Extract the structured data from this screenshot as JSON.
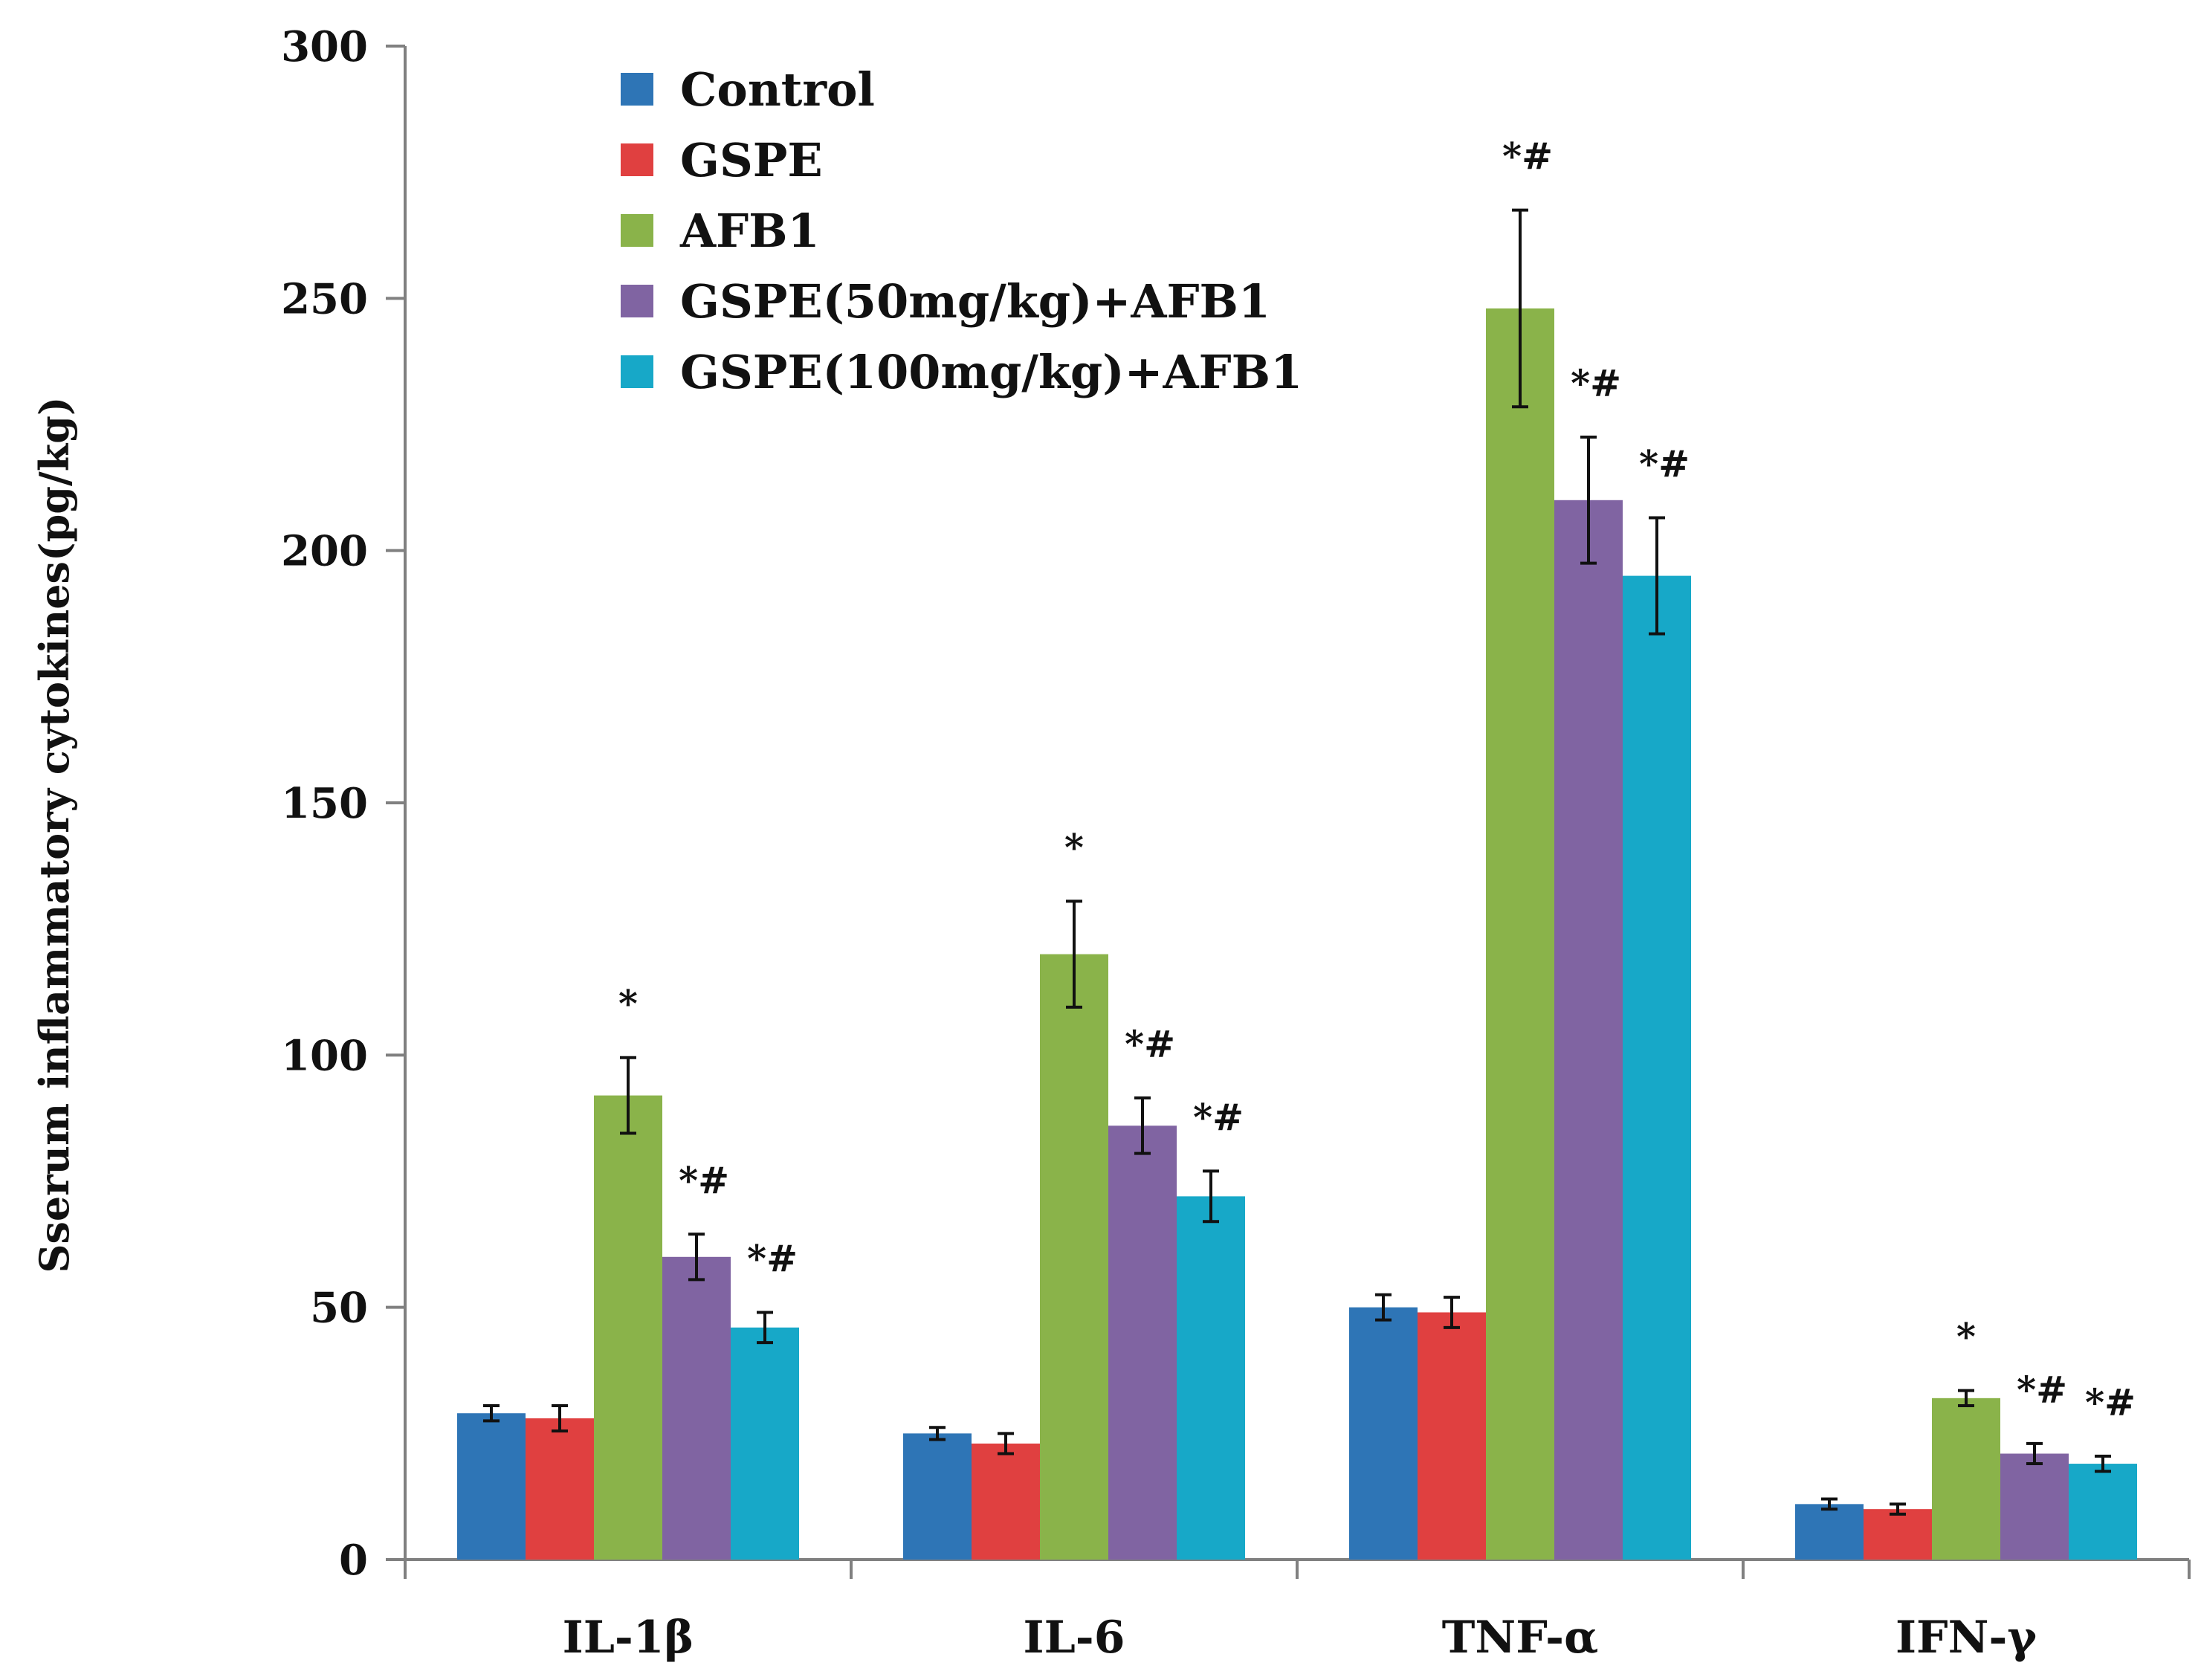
{
  "chart_data": {
    "type": "bar",
    "title": "",
    "xlabel": "",
    "ylabel": "Sserum inflammatory cytokines(pg/kg)",
    "ylim": [
      0,
      300
    ],
    "yticks": [
      "0",
      "50",
      "100",
      "150",
      "200",
      "250",
      "300"
    ],
    "categories": [
      "IL-1β",
      "IL-6",
      "TNF-α",
      "IFN-γ"
    ],
    "series": [
      {
        "name": "Control",
        "color": "#2e75b6",
        "values": [
          29,
          25,
          50,
          11
        ],
        "errors": [
          1.5,
          1.2,
          2.5,
          1.0
        ],
        "significance": [
          "",
          "",
          "",
          ""
        ]
      },
      {
        "name": "GSPE",
        "color": "#e04040",
        "values": [
          28,
          23,
          49,
          10
        ],
        "errors": [
          2.5,
          2.0,
          3.0,
          1.0
        ],
        "significance": [
          "",
          "",
          "",
          ""
        ]
      },
      {
        "name": "AFB1",
        "color": "#8ab34a",
        "values": [
          92,
          120,
          248,
          32
        ],
        "errors": [
          7.5,
          10.5,
          19.5,
          1.5
        ],
        "significance": [
          "*",
          "*",
          "*#",
          "*"
        ]
      },
      {
        "name": "GSPE(50mg/kg)+AFB1",
        "color": "#8064a2",
        "values": [
          60,
          86,
          210,
          21
        ],
        "errors": [
          4.5,
          5.5,
          12.5,
          2.0
        ],
        "significance": [
          "*#",
          "*#",
          "*#",
          "*#"
        ]
      },
      {
        "name": "GSPE(100mg/kg)+AFB1",
        "color": "#17a8c8",
        "values": [
          46,
          72,
          195,
          19
        ],
        "errors": [
          3.0,
          5.0,
          11.5,
          1.5
        ],
        "significance": [
          "*#",
          "*#",
          "*#",
          "*#"
        ]
      }
    ],
    "legend_position": "top-left",
    "grid": false
  }
}
